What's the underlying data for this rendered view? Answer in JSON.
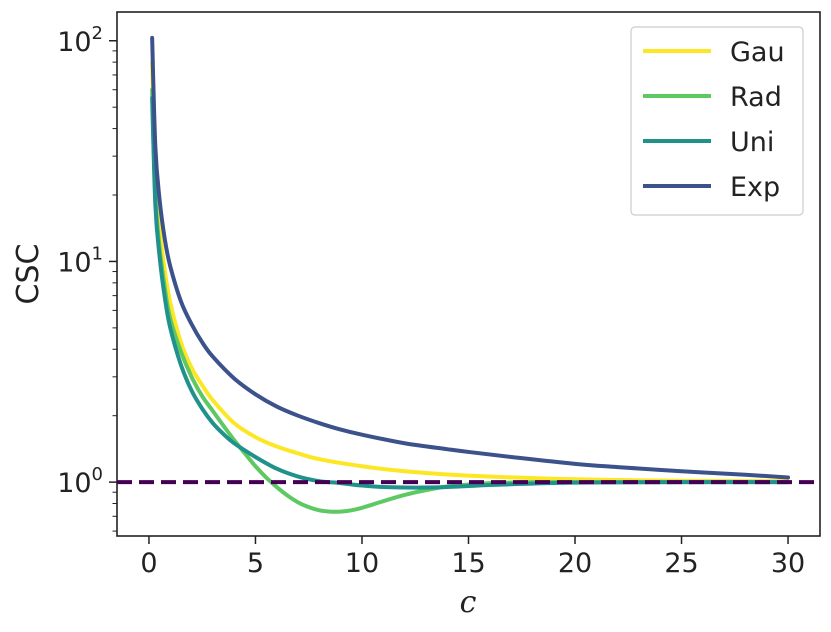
{
  "chart_data": {
    "type": "line",
    "xlabel": "c",
    "ylabel": "CSC",
    "xlim": [
      -1.5,
      31.5
    ],
    "ylim": [
      0.57,
      135
    ],
    "yscale": "log",
    "xticks": [
      0,
      5,
      10,
      15,
      20,
      25,
      30
    ],
    "xtick_labels": [
      "0",
      "5",
      "10",
      "15",
      "20",
      "25",
      "30"
    ],
    "yticks": [
      1,
      10,
      100
    ],
    "ytick_labels": [
      {
        "base": "10",
        "exp": "0"
      },
      {
        "base": "10",
        "exp": "1"
      },
      {
        "base": "10",
        "exp": "2"
      }
    ],
    "grid": false,
    "legend_position": "top-right",
    "reference_line": {
      "y": 1,
      "style": "dashed",
      "color": "#440154"
    },
    "series": [
      {
        "name": "Gau",
        "color": "#fde725",
        "x": [
          0.15,
          0.3,
          0.5,
          0.75,
          1,
          1.5,
          2,
          2.5,
          3,
          4,
          5,
          6,
          7,
          8,
          10,
          12,
          15,
          20,
          25,
          30
        ],
        "y": [
          80,
          25,
          14,
          9,
          6.5,
          4.3,
          3.3,
          2.75,
          2.35,
          1.85,
          1.6,
          1.45,
          1.35,
          1.27,
          1.18,
          1.12,
          1.07,
          1.03,
          1.015,
          1.01
        ]
      },
      {
        "name": "Rad",
        "color": "#5ec962",
        "x": [
          0.15,
          0.3,
          0.5,
          0.75,
          1,
          1.5,
          2,
          2.5,
          3,
          3.5,
          4,
          4.5,
          5,
          5.5,
          6,
          6.5,
          7,
          7.5,
          8,
          8.5,
          9,
          9.5,
          10,
          11,
          12,
          13,
          14,
          15,
          16,
          17,
          18,
          20,
          25,
          30
        ],
        "y": [
          60,
          20,
          11.5,
          7.5,
          5.5,
          3.9,
          3.0,
          2.45,
          2.1,
          1.8,
          1.55,
          1.35,
          1.18,
          1.05,
          0.95,
          0.87,
          0.81,
          0.77,
          0.745,
          0.735,
          0.735,
          0.745,
          0.765,
          0.82,
          0.875,
          0.92,
          0.955,
          0.975,
          0.99,
          0.995,
          1.0,
          1.0,
          1.0,
          1.0
        ]
      },
      {
        "name": "Uni",
        "color": "#21918c",
        "x": [
          0.15,
          0.3,
          0.5,
          0.75,
          1,
          1.5,
          2,
          2.5,
          3,
          3.5,
          4,
          5,
          6,
          7,
          8,
          9,
          10,
          11,
          12,
          13,
          14,
          15,
          16,
          18,
          20,
          25,
          30
        ],
        "y": [
          55,
          18,
          10.5,
          6.8,
          5.0,
          3.4,
          2.6,
          2.15,
          1.85,
          1.65,
          1.5,
          1.3,
          1.15,
          1.06,
          1.01,
          0.99,
          0.965,
          0.95,
          0.945,
          0.945,
          0.95,
          0.96,
          0.97,
          0.985,
          0.995,
          1.0,
          1.0
        ]
      },
      {
        "name": "Exp",
        "color": "#3b528b",
        "x": [
          0.15,
          0.3,
          0.5,
          0.75,
          1,
          1.5,
          2,
          2.5,
          3,
          4,
          5,
          6,
          7,
          8,
          9,
          10,
          12,
          14,
          15,
          17,
          20,
          22,
          25,
          28,
          30
        ],
        "y": [
          103,
          33,
          19,
          12.5,
          9.5,
          6.6,
          5.2,
          4.3,
          3.7,
          2.95,
          2.5,
          2.2,
          2.0,
          1.85,
          1.73,
          1.64,
          1.5,
          1.41,
          1.37,
          1.3,
          1.21,
          1.17,
          1.12,
          1.08,
          1.05
        ]
      }
    ]
  }
}
